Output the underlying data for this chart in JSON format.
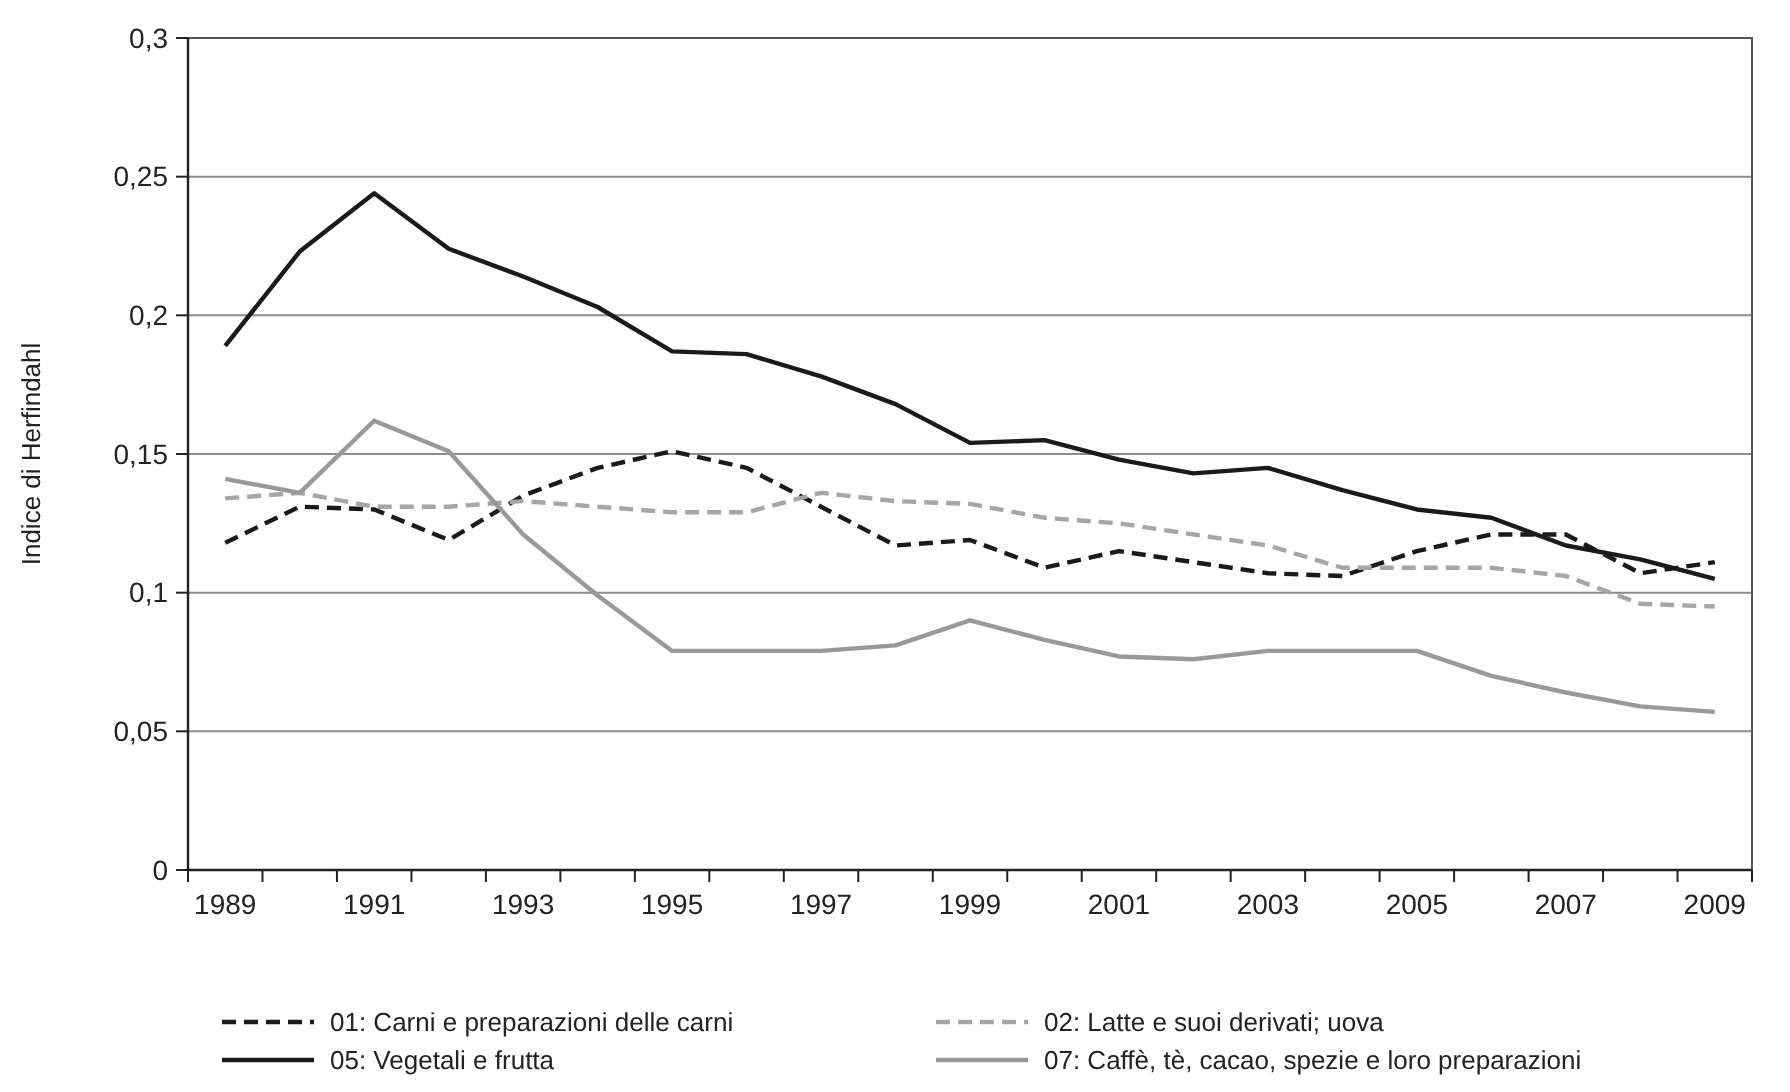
{
  "chart_data": {
    "type": "line",
    "ylabel": "Indice di Herfindahl",
    "categories": [
      "1989",
      null,
      "1991",
      null,
      "1993",
      null,
      "1995",
      null,
      "1997",
      null,
      "1999",
      null,
      "2001",
      null,
      "2003",
      null,
      "2005",
      null,
      "2007",
      null,
      "2009"
    ],
    "ylim": [
      0,
      0.3
    ],
    "yticks": [
      0,
      {
        "value": 0.05,
        "label": "0,05"
      },
      {
        "value": 0.1,
        "label": "0,1"
      },
      {
        "value": 0.15,
        "label": "0,15"
      },
      {
        "value": 0.2,
        "label": "0,2"
      },
      {
        "value": 0.25,
        "label": "0,25"
      },
      {
        "value": 0.3,
        "label": "0,3"
      }
    ],
    "grid": "y",
    "legend": "bottom",
    "series": [
      {
        "name": "01: Carni e preparazioni delle carni",
        "color": "#1a1a1a",
        "line_style": "dashed",
        "values": [
          0.118,
          0.131,
          0.13,
          0.119,
          0.135,
          0.145,
          0.151,
          0.145,
          0.131,
          0.117,
          0.119,
          0.109,
          0.115,
          0.111,
          0.107,
          0.106,
          0.115,
          0.121,
          0.121,
          0.107,
          0.111
        ]
      },
      {
        "name": "02: Latte e suoi derivati; uova",
        "color": "#a6a6a6",
        "line_style": "dashed",
        "values": [
          0.134,
          0.136,
          0.131,
          0.131,
          0.133,
          0.131,
          0.129,
          0.129,
          0.136,
          0.133,
          0.132,
          0.127,
          0.125,
          0.121,
          0.117,
          0.109,
          0.109,
          0.109,
          0.106,
          0.096,
          0.095
        ]
      },
      {
        "name": "05: Vegetali e frutta",
        "color": "#1a1a1a",
        "line_style": "solid",
        "values": [
          0.189,
          0.223,
          0.244,
          0.224,
          0.214,
          0.203,
          0.187,
          0.186,
          0.178,
          0.168,
          0.154,
          0.155,
          0.148,
          0.143,
          0.145,
          0.137,
          0.13,
          0.127,
          0.117,
          0.112,
          0.105
        ]
      },
      {
        "name": "07: Caffè, tè, cacao, spezie e loro preparazioni",
        "color": "#999999",
        "line_style": "solid",
        "values": [
          0.141,
          0.136,
          0.162,
          0.151,
          0.121,
          0.099,
          0.079,
          0.079,
          0.079,
          0.081,
          0.09,
          0.083,
          0.077,
          0.076,
          0.079,
          0.079,
          0.079,
          0.07,
          0.064,
          0.059,
          0.057
        ]
      }
    ]
  }
}
